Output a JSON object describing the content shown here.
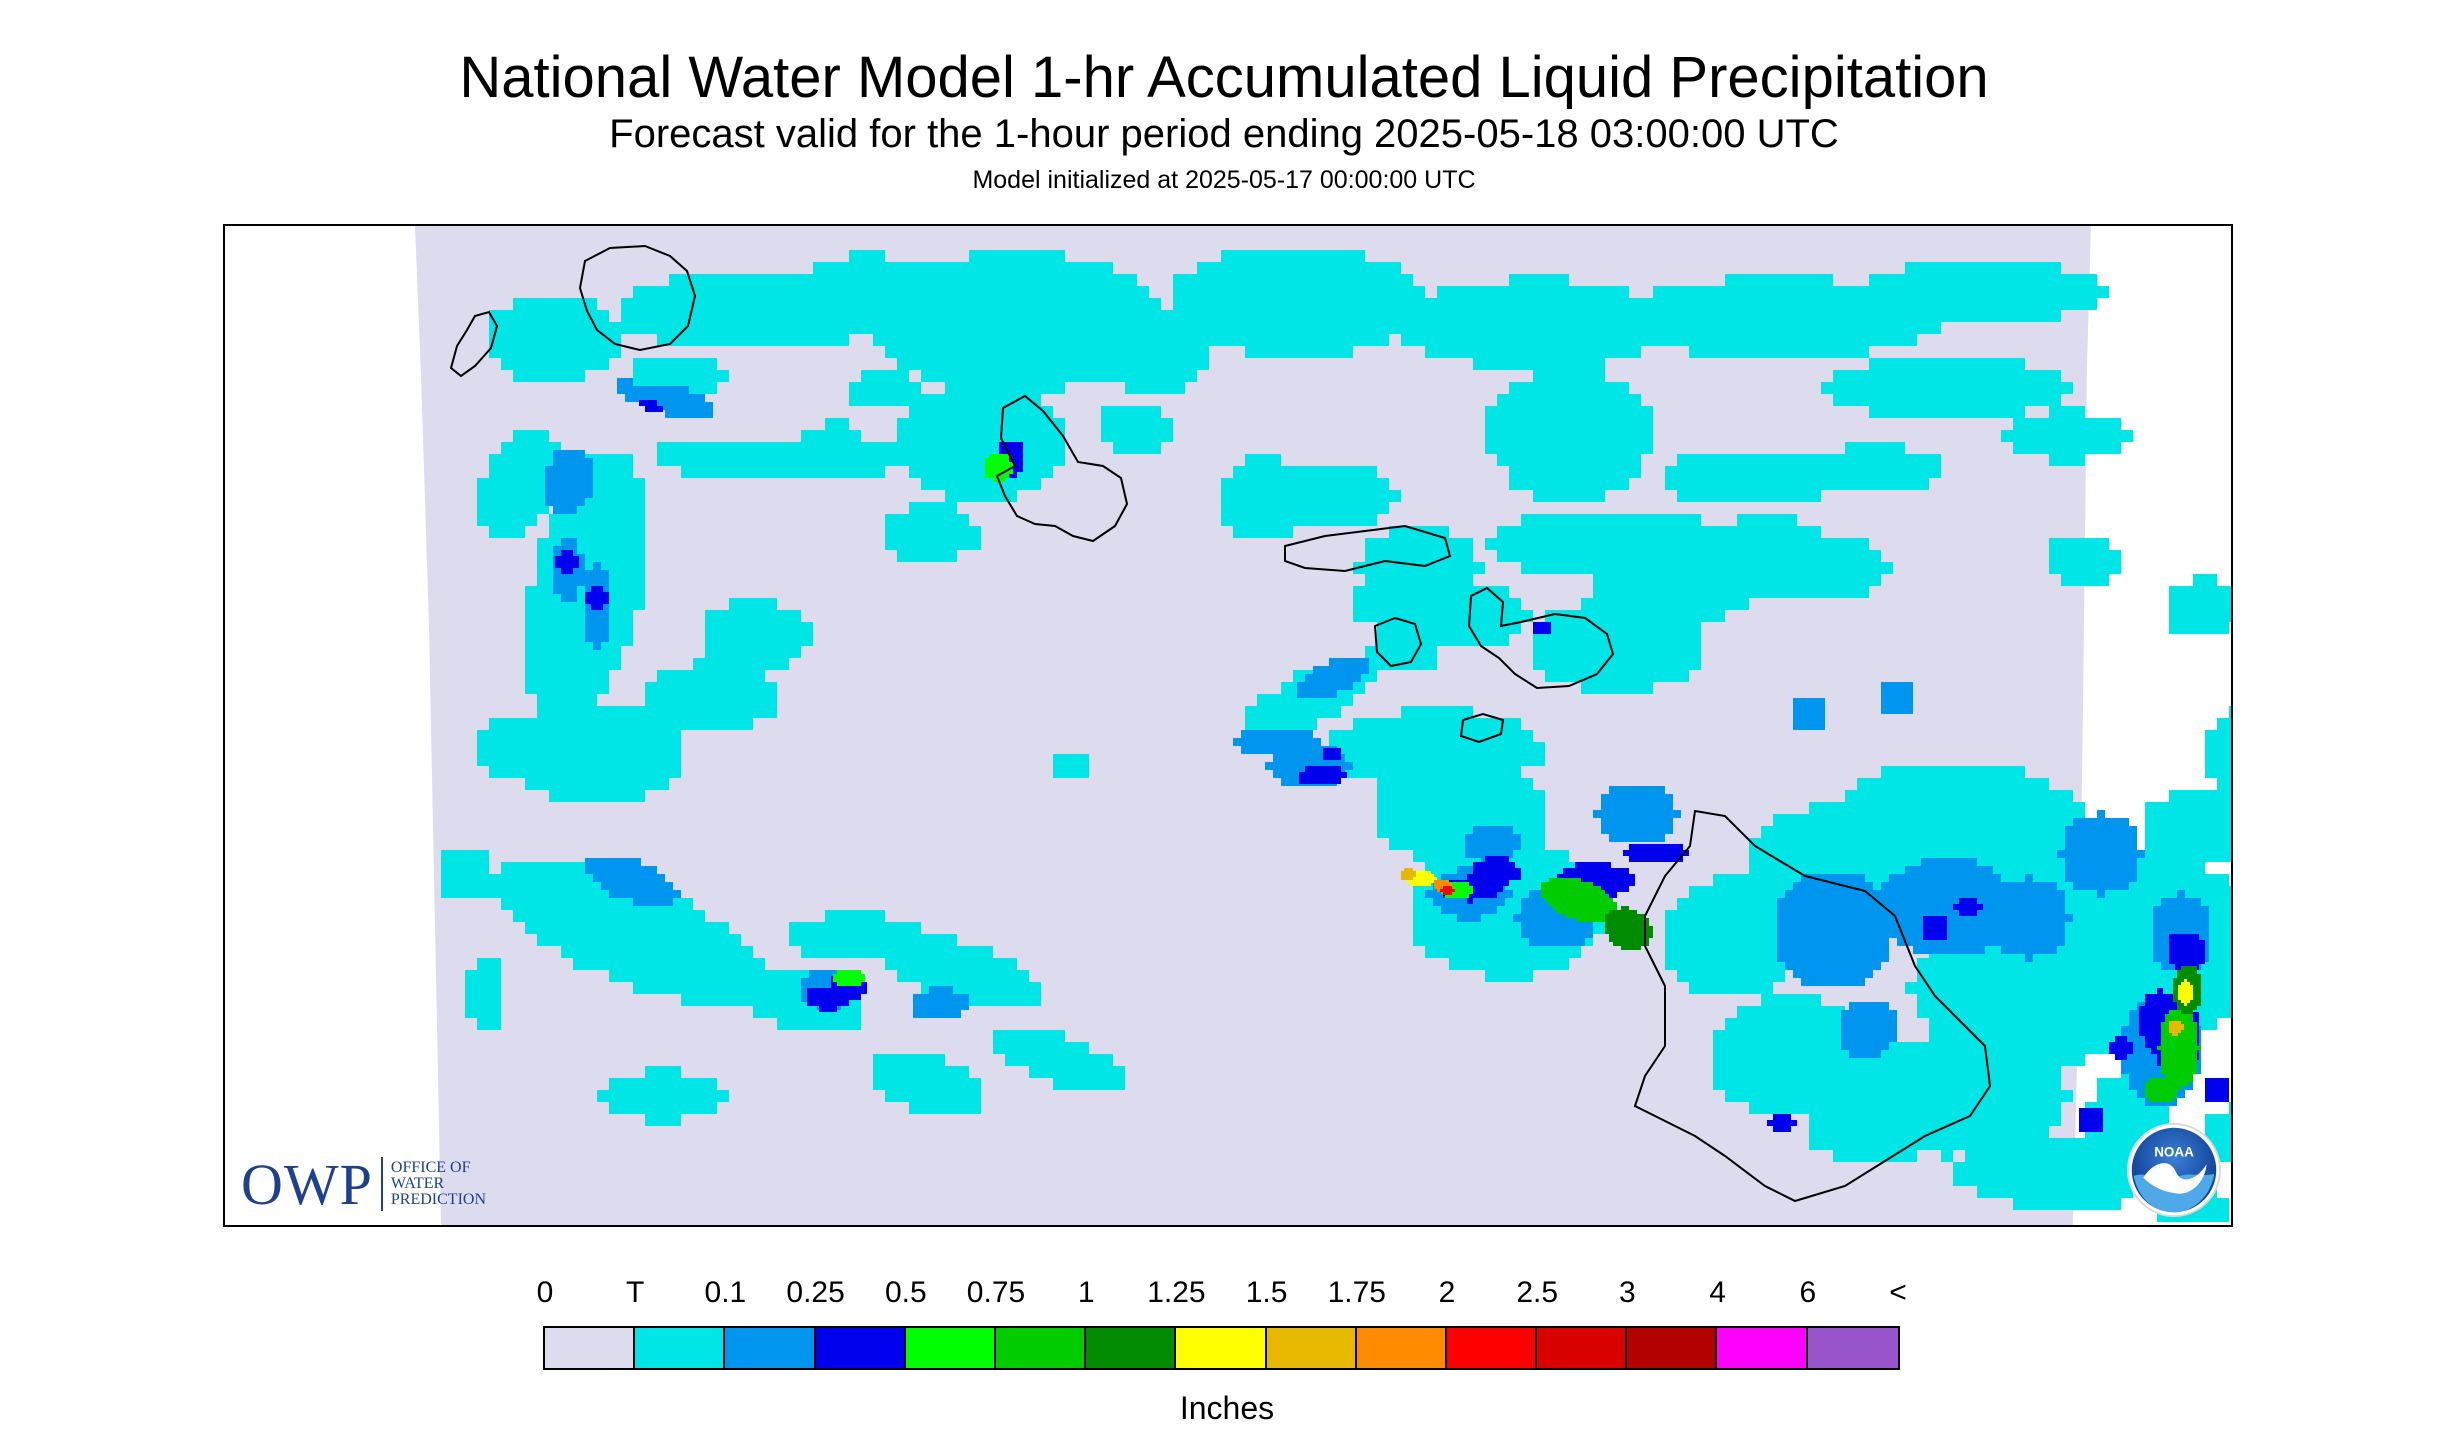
{
  "title": "National Water Model 1-hr Accumulated Liquid Precipitation",
  "subtitle": "Forecast valid for the 1-hour period ending 2025-05-18 03:00:00 UTC",
  "init_line": "Model initialized at 2025-05-17 00:00:00 UTC",
  "legend": {
    "ticks": [
      "0",
      "T",
      "0.1",
      "0.25",
      "0.5",
      "0.75",
      "1",
      "1.25",
      "1.5",
      "1.75",
      "2",
      "2.5",
      "3",
      "4",
      "6",
      "<"
    ],
    "colors": [
      "#dcdcee",
      "#00e6e6",
      "#0096f0",
      "#0000ee",
      "#00ff00",
      "#00cc00",
      "#008b00",
      "#ffff00",
      "#e6b800",
      "#ff8c00",
      "#ff0000",
      "#d90000",
      "#b30000",
      "#ff00ff",
      "#9955cc"
    ],
    "units": "Inches"
  },
  "logos": {
    "owp_letters": "OWP",
    "owp_line1": "OFFICE OF",
    "owp_line2": "WATER",
    "owp_line3": "PREDICTION",
    "noaa_text": "NOAA"
  },
  "map": {
    "domain_color": "#dcdcee",
    "coast_color": "#000000",
    "region": "Hawaiian Islands",
    "islands": [
      "Kauai",
      "Niihau",
      "Oahu",
      "Molokai",
      "Lanai",
      "Maui",
      "Kahoolawe",
      "Hawaii"
    ]
  }
}
